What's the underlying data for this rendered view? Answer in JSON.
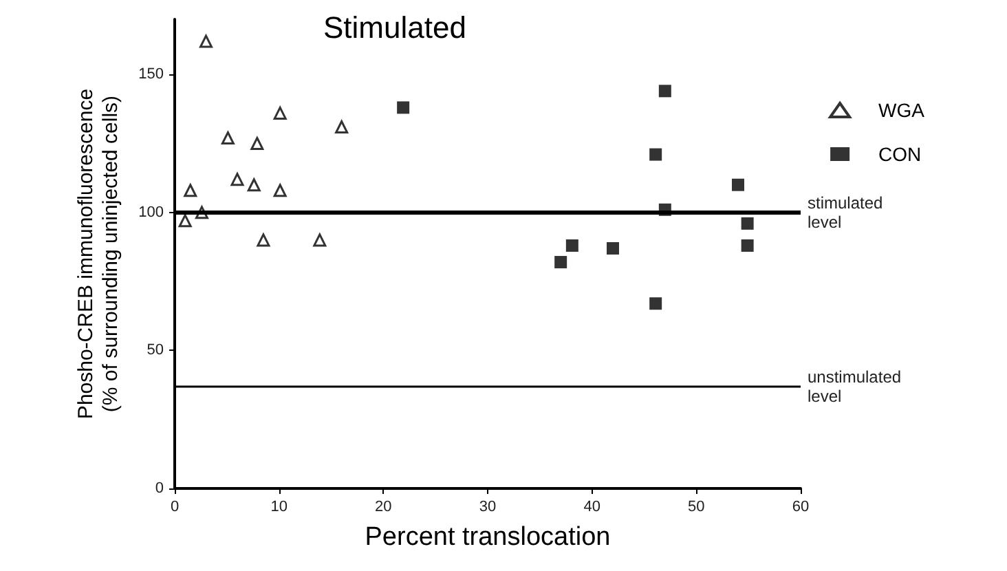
{
  "chart_data": {
    "type": "scatter",
    "title": "Stimulated",
    "xlabel": "Percent translocation",
    "ylabel": "Phosho-CREB immunofluorescence\n(% of surrounding uninjected cells)",
    "xlim": [
      0,
      60
    ],
    "xticks": [
      0,
      10,
      20,
      30,
      40,
      50,
      60
    ],
    "ylim": [
      0,
      170
    ],
    "yticks": [
      0,
      50,
      100,
      150
    ],
    "grid": false,
    "legend": "top right",
    "series": [
      {
        "name": "WGA",
        "color": "#000000",
        "marker": "triangle",
        "x": [
          3.0,
          10.1,
          5.1,
          7.9,
          16.0,
          6.0,
          7.6,
          1.5,
          10.1,
          1.0,
          2.6,
          8.5,
          13.9
        ],
        "values": [
          162,
          136,
          127,
          125,
          131,
          112,
          110,
          108,
          108,
          97,
          100,
          90,
          90
        ]
      },
      {
        "name": "CON",
        "color": "#000000",
        "marker": "square",
        "x": [
          21.9,
          47.0,
          46.1,
          54.0,
          47.0,
          54.9,
          38.1,
          37.0,
          42.0,
          54.9,
          46.1
        ],
        "values": [
          138,
          144,
          121,
          110,
          101,
          96,
          88,
          82,
          87,
          88,
          67
        ]
      }
    ],
    "ref_lines": [
      {
        "axis": "y",
        "value": 100,
        "label": "stimulated level",
        "color": "#000000"
      },
      {
        "axis": "y",
        "value": 37,
        "label": "unstimulated level",
        "color": "#000000"
      }
    ]
  }
}
